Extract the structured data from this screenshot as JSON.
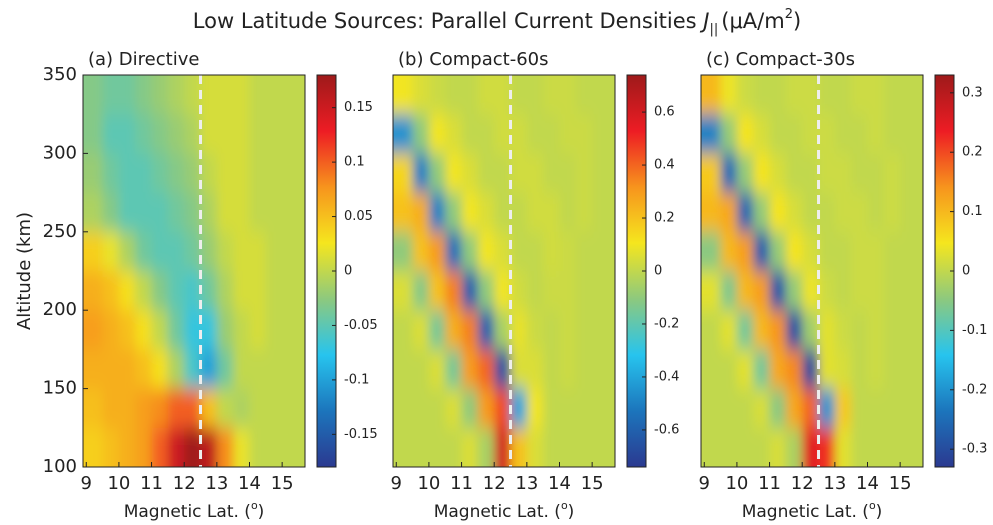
{
  "title": {
    "text": "Low Latitude Sources: Parallel Current Densities ",
    "symbol": "J",
    "subscript": "||",
    "unit": "(μA/m",
    "unit_power": "2",
    "close": ")"
  },
  "chart_data": [
    {
      "type": "heatmap",
      "title": "(a) Directive",
      "xlabel": {
        "text": "Magnetic Lat. (",
        "sup": "o",
        "close": ")"
      },
      "ylabel": "Altitude (km)",
      "xlim": [
        8.9,
        15.7
      ],
      "ylim": [
        100,
        350
      ],
      "xticks": [
        9,
        10,
        11,
        12,
        13,
        14,
        15
      ],
      "yticks": [
        100,
        150,
        200,
        250,
        300,
        350
      ],
      "zlim": [
        -0.18,
        0.18
      ],
      "zticks": [
        -0.15,
        -0.1,
        -0.05,
        0,
        0.05,
        0.1,
        0.15
      ],
      "vline": 12.5,
      "colormap": [
        "#2b3990",
        "#1c75bc",
        "#27c4ee",
        "#8dc97e",
        "#f5e61e",
        "#f7941d",
        "#ed1c24",
        "#9e1a1a"
      ],
      "x": [
        9.25,
        9.75,
        10.25,
        10.75,
        11.25,
        11.75,
        12.25,
        12.75,
        13.25,
        13.75,
        14.25,
        14.75,
        15.25,
        15.75
      ],
      "y": [
        337.5,
        312.5,
        287.5,
        262.5,
        237.5,
        212.5,
        187.5,
        162.5,
        137.5,
        112.5
      ],
      "z": [
        [
          -0.03,
          -0.04,
          -0.04,
          -0.03,
          -0.02,
          -0.01,
          0,
          0.01,
          0.01,
          0.01,
          0,
          0,
          0,
          0
        ],
        [
          -0.03,
          -0.05,
          -0.05,
          -0.04,
          -0.03,
          -0.02,
          -0.01,
          0.01,
          0.01,
          0.01,
          0,
          0,
          0,
          0
        ],
        [
          -0.02,
          -0.04,
          -0.05,
          -0.05,
          -0.04,
          -0.03,
          -0.02,
          0,
          0.01,
          0.01,
          0,
          0,
          0,
          0
        ],
        [
          -0.01,
          -0.03,
          -0.05,
          -0.05,
          -0.05,
          -0.04,
          -0.03,
          -0.01,
          0.01,
          0.01,
          0,
          0,
          0,
          0
        ],
        [
          0.04,
          0.02,
          -0.01,
          -0.04,
          -0.05,
          -0.05,
          -0.04,
          -0.02,
          0,
          0.01,
          0.01,
          0,
          0,
          0
        ],
        [
          0.06,
          0.05,
          0.03,
          0,
          -0.03,
          -0.05,
          -0.06,
          -0.04,
          -0.01,
          0.01,
          0.01,
          0,
          0,
          0
        ],
        [
          0.07,
          0.06,
          0.05,
          0.03,
          0,
          -0.04,
          -0.07,
          -0.07,
          -0.02,
          0,
          0.01,
          0,
          0,
          0
        ],
        [
          0.06,
          0.06,
          0.06,
          0.05,
          0.03,
          -0.01,
          -0.06,
          -0.1,
          -0.04,
          0,
          0,
          0,
          0,
          0
        ],
        [
          0.05,
          0.06,
          0.06,
          0.07,
          0.08,
          0.1,
          0.1,
          0.05,
          0,
          -0.01,
          0,
          0,
          0,
          0
        ],
        [
          0.04,
          0.05,
          0.06,
          0.07,
          0.1,
          0.15,
          0.18,
          0.16,
          0.08,
          0.02,
          0,
          0,
          0,
          0
        ]
      ]
    },
    {
      "type": "heatmap",
      "title": "(b) Compact-60s",
      "xlabel": {
        "text": "Magnetic Lat. (",
        "sup": "o",
        "close": ")"
      },
      "xlim": [
        8.9,
        15.7
      ],
      "ylim": [
        100,
        350
      ],
      "xticks": [
        9,
        10,
        11,
        12,
        13,
        14,
        15
      ],
      "zlim": [
        -0.74,
        0.74
      ],
      "zticks": [
        -0.6,
        -0.4,
        -0.2,
        0,
        0.2,
        0.4,
        0.6
      ],
      "vline": 12.5,
      "colormap": [
        "#2b3990",
        "#1c75bc",
        "#27c4ee",
        "#8dc97e",
        "#f5e61e",
        "#f7941d",
        "#ed1c24",
        "#9e1a1a"
      ],
      "x": [
        9.25,
        9.75,
        10.25,
        10.75,
        11.25,
        11.75,
        12.25,
        12.75,
        13.25,
        13.75,
        14.25,
        14.75,
        15.25,
        15.75
      ],
      "y": [
        337.5,
        312.5,
        287.5,
        262.5,
        237.5,
        212.5,
        187.5,
        162.5,
        137.5,
        112.5
      ],
      "z": [
        [
          0.1,
          0.05,
          0.02,
          0,
          0,
          0.03,
          0.03,
          0,
          0,
          0.02,
          0.02,
          0,
          0,
          0
        ],
        [
          -0.45,
          -0.1,
          0.1,
          0.05,
          0,
          0,
          0.03,
          0.03,
          0,
          0,
          0.02,
          0.02,
          0,
          0
        ],
        [
          0.15,
          -0.5,
          -0.1,
          0.1,
          0.05,
          0,
          0,
          0.03,
          0.03,
          0,
          0,
          0.02,
          0,
          0
        ],
        [
          0.2,
          0.25,
          -0.5,
          -0.1,
          0.1,
          0.05,
          0,
          0,
          0.03,
          0.03,
          0,
          0.02,
          0,
          0
        ],
        [
          -0.1,
          0.2,
          0.3,
          -0.55,
          -0.1,
          0.1,
          0.05,
          0,
          0,
          0.03,
          0.02,
          0,
          0,
          0
        ],
        [
          0.05,
          -0.12,
          0.2,
          0.35,
          -0.6,
          -0.1,
          0.1,
          0.03,
          0,
          0.02,
          0.02,
          0,
          0,
          0
        ],
        [
          0,
          0.05,
          -0.15,
          0.25,
          0.35,
          -0.6,
          -0.05,
          0.08,
          0.02,
          0,
          0.02,
          0,
          0,
          0
        ],
        [
          0,
          0,
          0.05,
          -0.15,
          0.3,
          0.4,
          -0.65,
          0.05,
          0.05,
          0,
          0.02,
          0,
          0,
          0
        ],
        [
          0,
          0,
          0,
          0.05,
          -0.1,
          0.3,
          0.45,
          -0.4,
          0.1,
          0,
          0,
          0,
          0,
          0
        ],
        [
          0,
          0,
          0,
          0,
          0.05,
          -0.05,
          0.6,
          0.2,
          0.05,
          0,
          0,
          0,
          0,
          0
        ]
      ]
    },
    {
      "type": "heatmap",
      "title": "(c) Compact-30s",
      "xlabel": {
        "text": "Magnetic Lat. (",
        "sup": "o",
        "close": ")"
      },
      "xlim": [
        8.9,
        15.7
      ],
      "ylim": [
        100,
        350
      ],
      "xticks": [
        9,
        10,
        11,
        12,
        13,
        14,
        15
      ],
      "zlim": [
        -0.33,
        0.33
      ],
      "zticks": [
        -0.3,
        -0.2,
        -0.1,
        0,
        0.1,
        0.2,
        0.3
      ],
      "vline": 12.5,
      "colormap": [
        "#2b3990",
        "#1c75bc",
        "#27c4ee",
        "#8dc97e",
        "#f5e61e",
        "#f7941d",
        "#ed1c24",
        "#9e1a1a"
      ],
      "x": [
        9.25,
        9.75,
        10.25,
        10.75,
        11.25,
        11.75,
        12.25,
        12.75,
        13.25,
        13.75,
        14.25,
        14.75,
        15.25,
        15.75
      ],
      "y": [
        337.5,
        312.5,
        287.5,
        262.5,
        237.5,
        212.5,
        187.5,
        162.5,
        137.5,
        112.5
      ],
      "z": [
        [
          0.1,
          0.04,
          0.01,
          0,
          0,
          0.01,
          0.01,
          0,
          0,
          0.01,
          0.01,
          0,
          0,
          0
        ],
        [
          -0.22,
          -0.04,
          0.05,
          0.02,
          0,
          0,
          0.01,
          0.01,
          0,
          0,
          0.01,
          0,
          0,
          0
        ],
        [
          0.08,
          -0.25,
          -0.04,
          0.05,
          0.02,
          0,
          0,
          0.01,
          0.01,
          0,
          0,
          0.01,
          0,
          0
        ],
        [
          0.1,
          0.12,
          -0.26,
          -0.04,
          0.05,
          0.02,
          0,
          0,
          0.01,
          0.01,
          0,
          0.01,
          0,
          0
        ],
        [
          -0.05,
          0.1,
          0.13,
          -0.27,
          -0.04,
          0.05,
          0.02,
          0,
          0,
          0.01,
          0.01,
          0,
          0,
          0
        ],
        [
          0.03,
          -0.06,
          0.1,
          0.13,
          -0.28,
          -0.04,
          0.04,
          0.01,
          0,
          0.01,
          0.01,
          0,
          0,
          0
        ],
        [
          0,
          0.03,
          -0.07,
          0.1,
          0.14,
          -0.29,
          -0.03,
          0.03,
          0.01,
          0,
          0.01,
          0,
          0,
          0
        ],
        [
          0,
          0,
          0.03,
          -0.07,
          0.12,
          0.15,
          -0.3,
          0.03,
          0.02,
          0,
          0.01,
          0,
          0,
          0
        ],
        [
          0,
          0,
          0,
          0.02,
          -0.05,
          0.12,
          0.18,
          -0.2,
          0.08,
          0,
          0,
          0,
          0,
          0
        ],
        [
          0,
          0,
          0,
          0,
          0.02,
          -0.02,
          0.25,
          0.22,
          0.03,
          0,
          0,
          0,
          0,
          0
        ]
      ]
    }
  ]
}
